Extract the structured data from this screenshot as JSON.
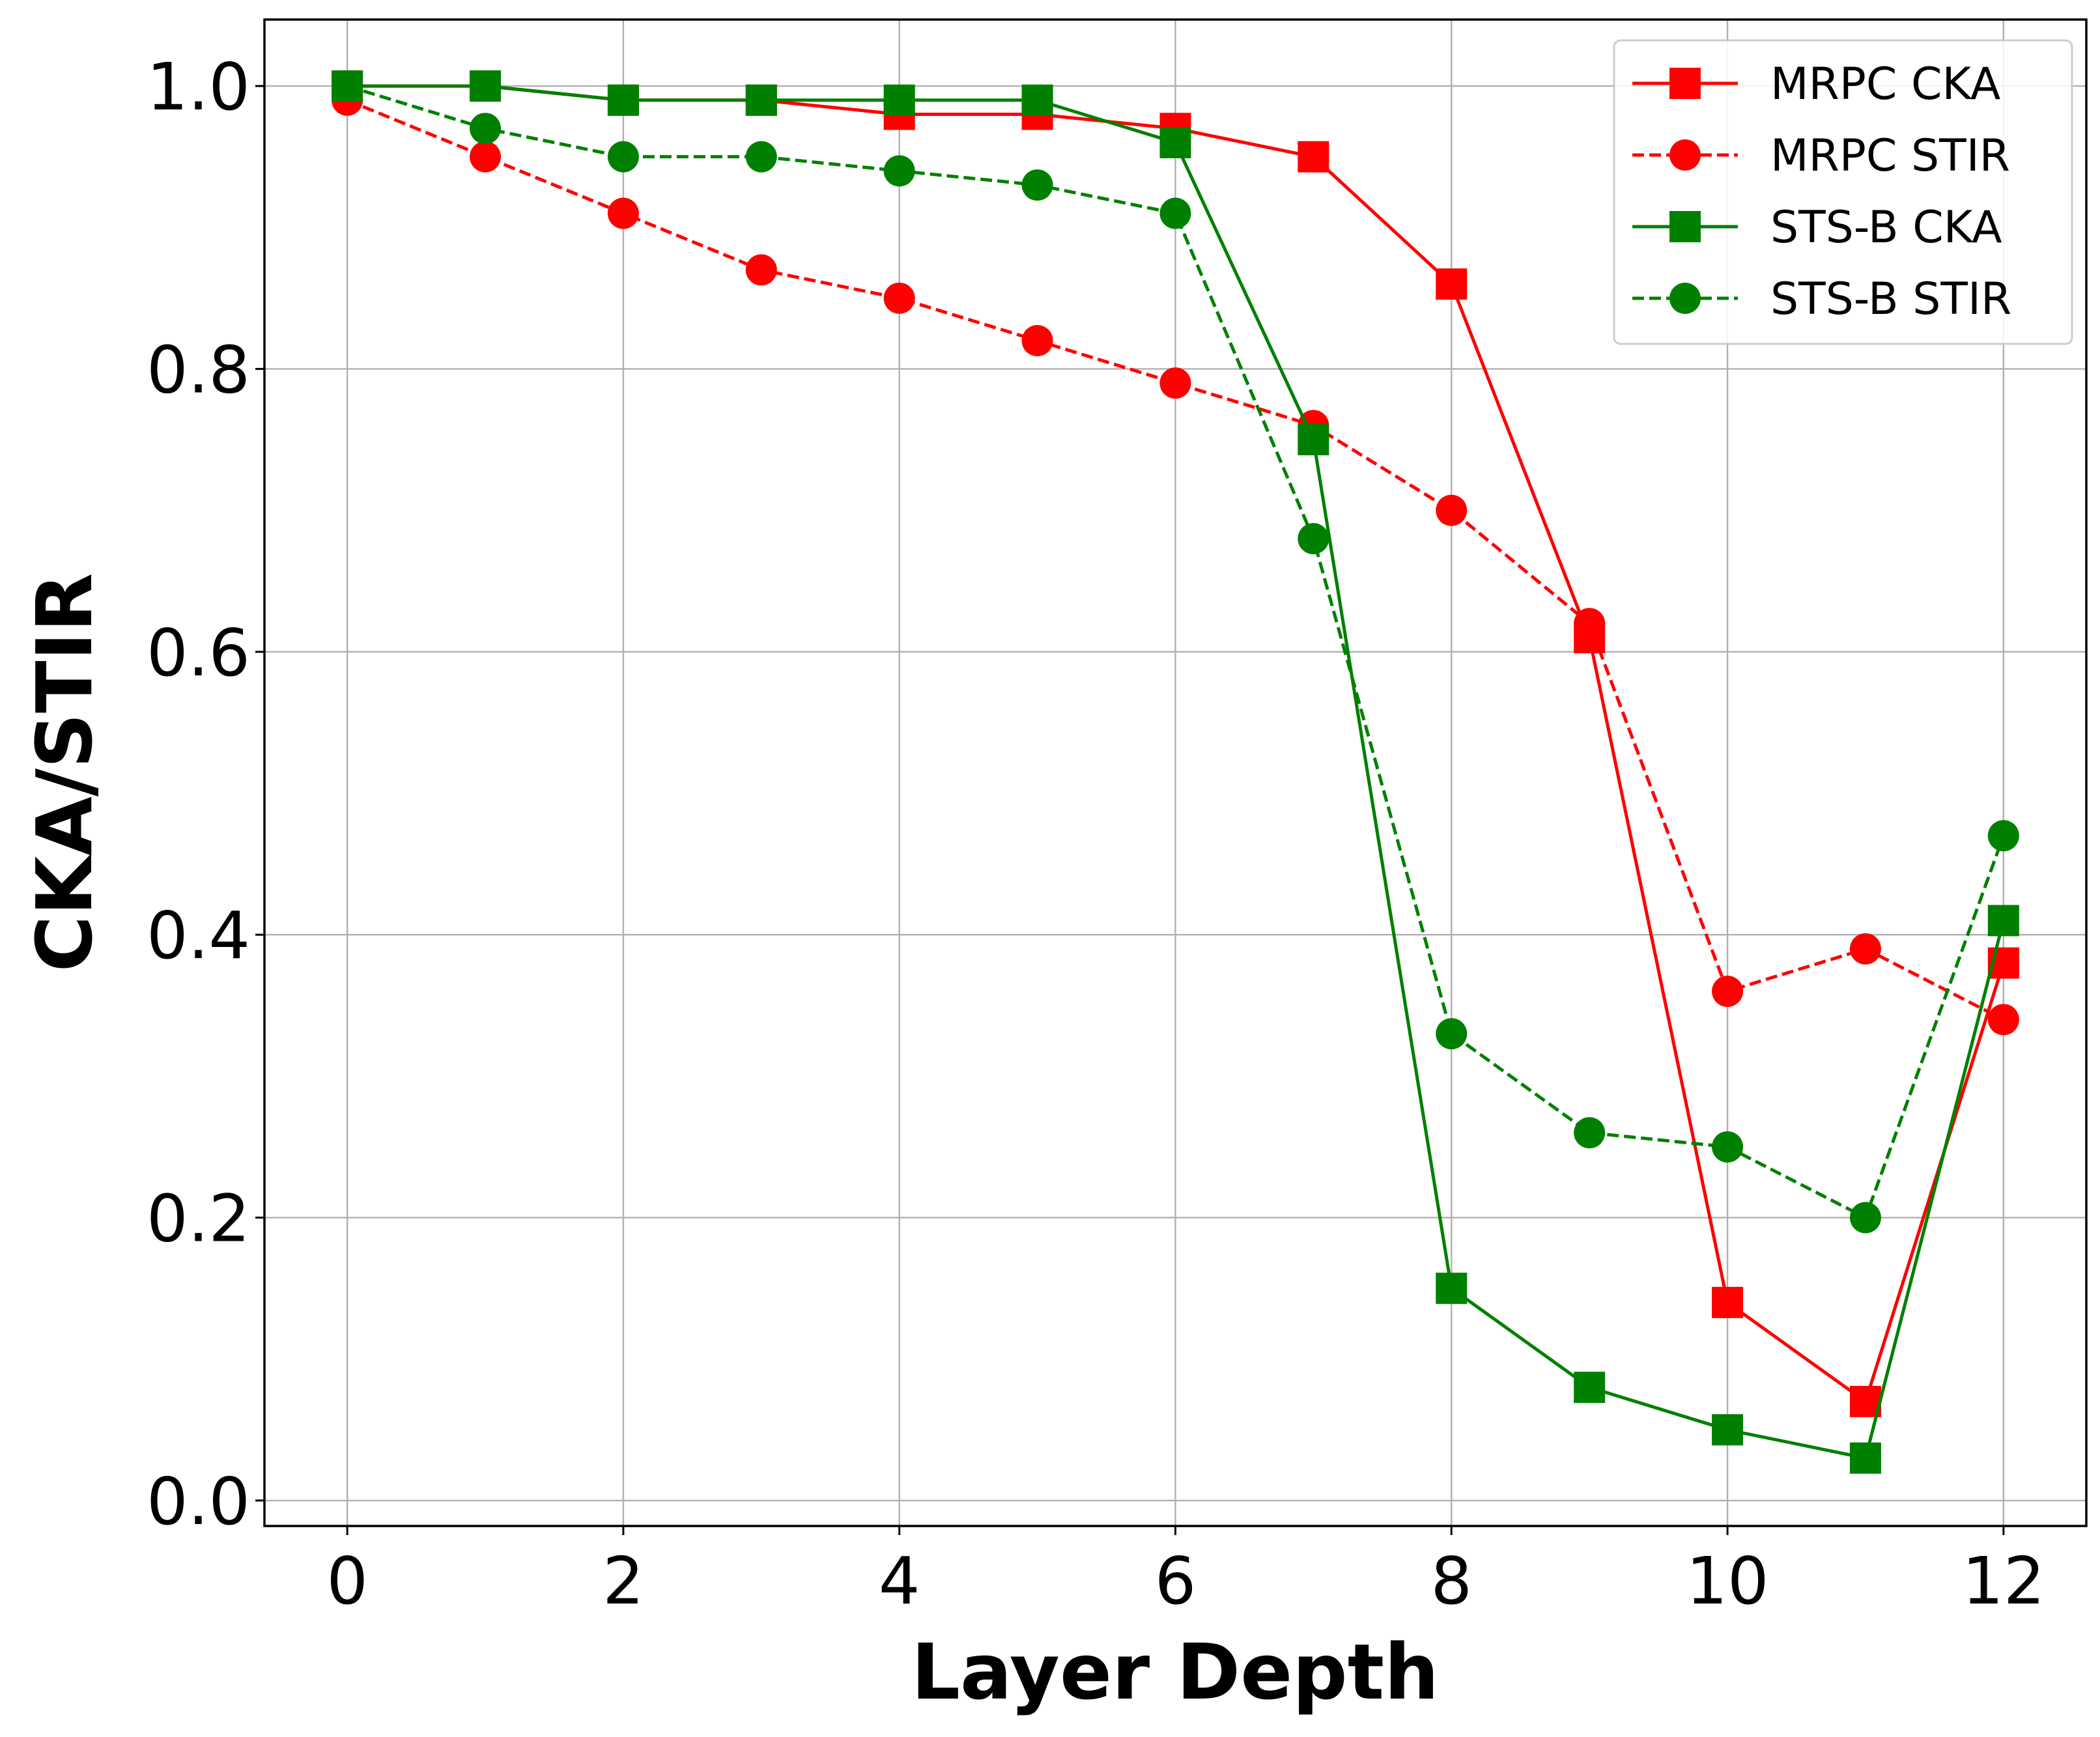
{
  "chart_data": {
    "type": "line",
    "title": "",
    "xlabel": "Layer Depth",
    "ylabel": "CKA/STIR",
    "xlim": [
      -0.6,
      12.6
    ],
    "ylim": [
      -0.018,
      1.047
    ],
    "xticks": [
      0,
      2,
      4,
      6,
      8,
      10,
      12
    ],
    "xtick_labels": [
      "0",
      "2",
      "4",
      "6",
      "8",
      "10",
      "12"
    ],
    "yticks": [
      0.0,
      0.2,
      0.4,
      0.6,
      0.8,
      1.0
    ],
    "ytick_labels": [
      "0.0",
      "0.2",
      "0.4",
      "0.6",
      "0.8",
      "1.0"
    ],
    "grid": true,
    "legend_position": "top-right",
    "x": [
      0,
      1,
      2,
      3,
      4,
      5,
      6,
      7,
      8,
      9,
      10,
      11,
      12
    ],
    "series": [
      {
        "name": "MRPC CKA",
        "color": "#ff0000",
        "line_style": "solid",
        "marker": "square",
        "values": [
          1.0,
          1.0,
          0.99,
          0.99,
          0.98,
          0.98,
          0.97,
          0.95,
          0.86,
          0.61,
          0.14,
          0.07,
          0.38
        ]
      },
      {
        "name": "MRPC STIR",
        "color": "#ff0000",
        "line_style": "dashed",
        "marker": "circle",
        "values": [
          0.99,
          0.95,
          0.91,
          0.87,
          0.85,
          0.82,
          0.79,
          0.76,
          0.7,
          0.62,
          0.36,
          0.39,
          0.34
        ]
      },
      {
        "name": "STS-B CKA",
        "color": "#008000",
        "line_style": "solid",
        "marker": "square",
        "values": [
          1.0,
          1.0,
          0.99,
          0.99,
          0.99,
          0.99,
          0.96,
          0.75,
          0.15,
          0.08,
          0.05,
          0.03,
          0.41
        ]
      },
      {
        "name": "STS-B STIR",
        "color": "#008000",
        "line_style": "dashed",
        "marker": "circle",
        "values": [
          1.0,
          0.97,
          0.95,
          0.95,
          0.94,
          0.93,
          0.91,
          0.68,
          0.33,
          0.26,
          0.25,
          0.2,
          0.47
        ]
      }
    ]
  }
}
